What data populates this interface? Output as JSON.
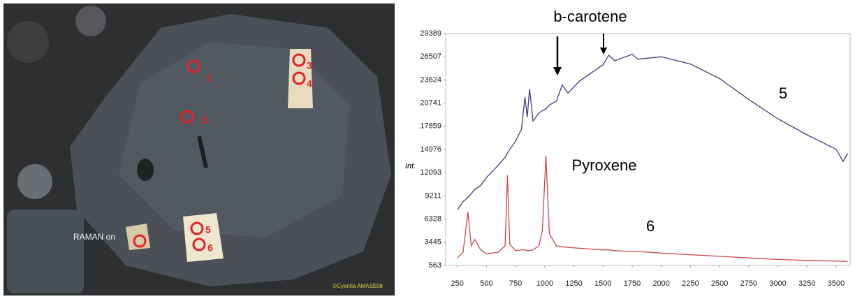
{
  "photo": {
    "labels": [
      "1",
      "2",
      "3",
      "4",
      "5",
      "6"
    ],
    "caption": "RAMAN on",
    "credit": "©Cyentia AMASE08"
  },
  "chart_data": {
    "type": "line",
    "ylabel": "Int.",
    "annotations": [
      "b-carotene",
      "Pyroxene"
    ],
    "x": [
      250,
      300,
      340,
      370,
      400,
      450,
      500,
      600,
      660,
      680,
      700,
      750,
      800,
      830,
      850,
      870,
      900,
      950,
      980,
      1010,
      1040,
      1100,
      1150,
      1200,
      1300,
      1400,
      1500,
      1550,
      1600,
      1750,
      1800,
      2000,
      2250,
      2500,
      2750,
      3000,
      3250,
      3500,
      3560,
      3600
    ],
    "series": [
      {
        "name": "5",
        "color": "#3b3f80",
        "values": [
          7500,
          8500,
          9000,
          9500,
          10000,
          10500,
          11500,
          13000,
          14000,
          14500,
          15000,
          16000,
          17500,
          21500,
          19000,
          22500,
          18500,
          19500,
          19800,
          20000,
          20500,
          21000,
          23000,
          22000,
          23500,
          24500,
          25500,
          26700,
          26000,
          26800,
          26200,
          26500,
          25600,
          23800,
          21200,
          18800,
          16800,
          15000,
          13500,
          14500
        ]
      },
      {
        "name": "6",
        "color": "#d0454f",
        "values": [
          1500,
          2200,
          7200,
          3000,
          3800,
          2500,
          2000,
          2200,
          3000,
          11800,
          3200,
          2400,
          2500,
          2500,
          2400,
          2400,
          2500,
          3000,
          5000,
          14200,
          4500,
          3000,
          2900,
          2800,
          2700,
          2600,
          2500,
          2500,
          2400,
          2300,
          2300,
          2100,
          1900,
          1700,
          1500,
          1300,
          1200,
          1100,
          1100,
          1000
        ]
      }
    ],
    "xlim": [
      150,
      3620
    ],
    "xticks": [
      250,
      500,
      750,
      1000,
      1250,
      1500,
      1750,
      2000,
      2250,
      2500,
      2750,
      3000,
      3250,
      3500
    ],
    "ylim": [
      563,
      29389
    ],
    "yticks": [
      563,
      3445,
      6328,
      9211,
      12093,
      14976,
      17859,
      20741,
      23624,
      26507,
      29389
    ]
  }
}
